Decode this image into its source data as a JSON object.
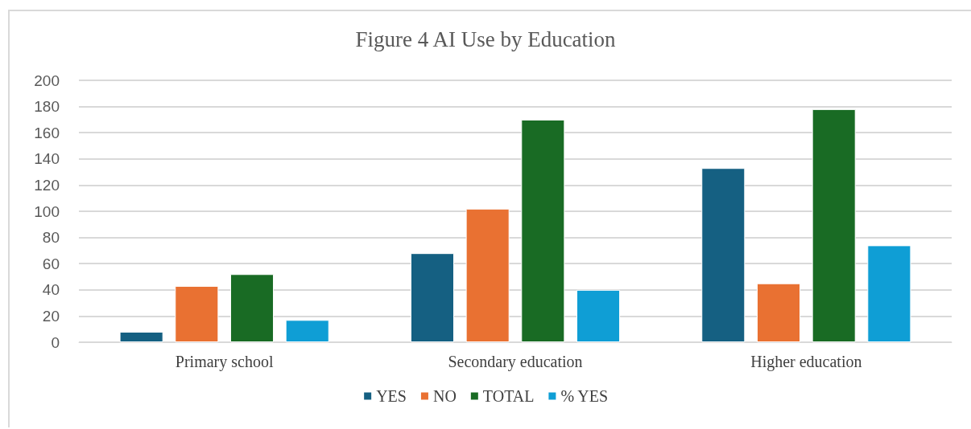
{
  "chart_data": {
    "type": "bar",
    "title": "Figure 4 AI Use by Education",
    "categories": [
      "Primary school",
      "Secondary education",
      "Higher education"
    ],
    "series": [
      {
        "name": "YES",
        "color": "#156082",
        "values": [
          8,
          68,
          133
        ]
      },
      {
        "name": "NO",
        "color": "#e97132",
        "values": [
          43,
          102,
          45
        ]
      },
      {
        "name": "TOTAL",
        "color": "#196b24",
        "values": [
          52,
          170,
          178
        ]
      },
      {
        "name": "% YES",
        "color": "#0f9ed5",
        "values": [
          17,
          40,
          74
        ]
      }
    ],
    "ylim": [
      0,
      200
    ],
    "yticks": [
      0,
      20,
      40,
      60,
      80,
      100,
      120,
      140,
      160,
      180,
      200
    ],
    "grid": "y",
    "legend": "bottom"
  }
}
